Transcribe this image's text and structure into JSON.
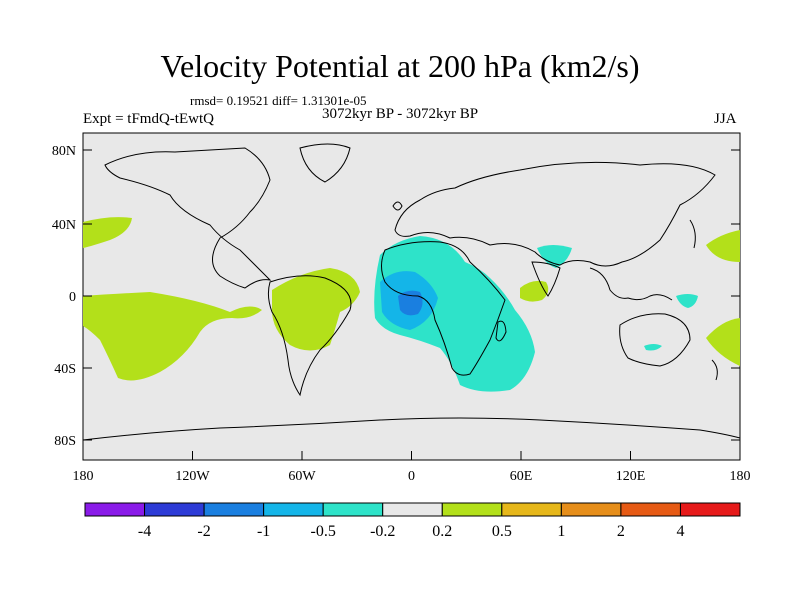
{
  "title": "Velocity Potential at 200 hPa (km2/s)",
  "stats": "rmsd= 0.19521 diff= 1.31301e-05",
  "expt": "Expt = tFmdQ-tEwtQ",
  "period": "3072kyr BP - 3072kyr BP",
  "season": "JJA",
  "lat_ticks": [
    "80N",
    "40N",
    "0",
    "40S",
    "80S"
  ],
  "lon_ticks": [
    "180",
    "120W",
    "60W",
    "0",
    "60E",
    "120E",
    "180"
  ],
  "colorbar": {
    "labels": [
      "-4",
      "-2",
      "-1",
      "-0.5",
      "-0.2",
      "0.2",
      "0.5",
      "1",
      "2",
      "4"
    ],
    "colors": [
      "#8a1be8",
      "#2d3bd6",
      "#1a7fe0",
      "#14b5e8",
      "#2ee3c9",
      "#e8e8e8",
      "#b3e01a",
      "#e6b71a",
      "#e68e1a",
      "#e65a14",
      "#e61a1a"
    ]
  },
  "colors": {
    "land_bg": "#e8e8e8",
    "positive_light": "#b3e01a",
    "negative_light": "#2ee3c9",
    "negative_mid": "#14b5e8",
    "negative_strong": "#1a7fe0"
  }
}
